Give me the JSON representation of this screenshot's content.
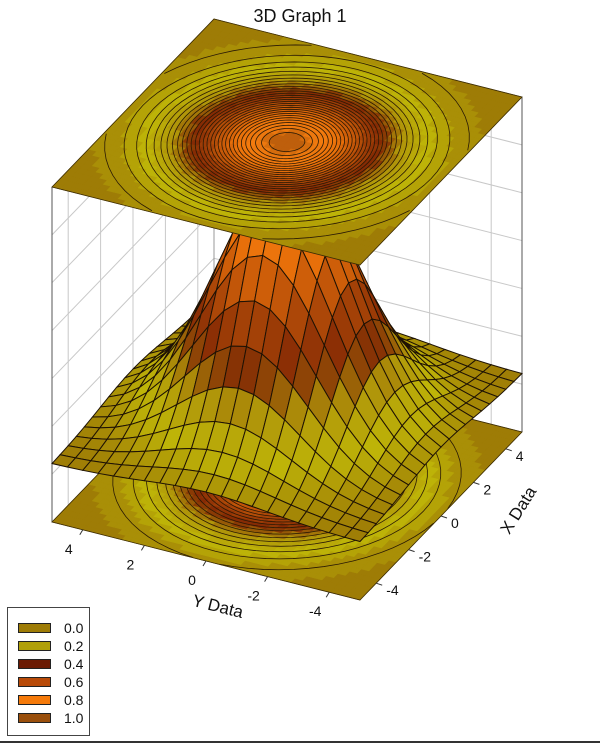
{
  "chart_data": {
    "type": "surface3d",
    "title": "3D Graph 1",
    "xlabel": "X Data",
    "ylabel": "Y Data",
    "zlabel": "",
    "x_ticks": [
      "-4",
      "-2",
      "0",
      "2",
      "4"
    ],
    "y_ticks": [
      "4",
      "2",
      "0",
      "-2",
      "-4"
    ],
    "xlim": [
      -5,
      5
    ],
    "ylim": [
      -5,
      5
    ],
    "zlim": [
      0,
      1
    ],
    "function": "z = exp(-(x^2 + y^2)/8) (Gaussian bell surface)",
    "grid": true,
    "projections": [
      "contour plane at top",
      "contour plane at bottom",
      "contour on back wall"
    ],
    "legend_position": "bottom-left",
    "legend": [
      {
        "label": "0.0",
        "color": "#9e7c06"
      },
      {
        "label": "0.2",
        "color": "#b0a00a"
      },
      {
        "label": "0.4",
        "color": "#6b1a02"
      },
      {
        "label": "0.6",
        "color": "#b84a08"
      },
      {
        "label": "0.8",
        "color": "#f57a0a"
      },
      {
        "label": "1.0",
        "color": "#9a4f0c"
      }
    ],
    "mesh_rows": 20,
    "mesh_cols": 20
  },
  "legend": {
    "items": [
      {
        "label": "0.0",
        "color": "#9e7c06"
      },
      {
        "label": "0.2",
        "color": "#b0a00a"
      },
      {
        "label": "0.4",
        "color": "#6b1a02"
      },
      {
        "label": "0.6",
        "color": "#b84a08"
      },
      {
        "label": "0.8",
        "color": "#f57a0a"
      },
      {
        "label": "1.0",
        "color": "#9a4f0c"
      }
    ]
  }
}
